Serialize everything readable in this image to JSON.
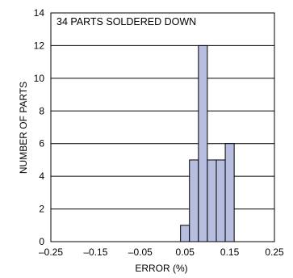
{
  "chart_data": {
    "type": "bar",
    "annotation": "34 PARTS SOLDERED DOWN",
    "xlabel": "ERROR (%)",
    "ylabel": "NUMBER OF PARTS",
    "xlim": [
      -0.25,
      0.25
    ],
    "ylim": [
      0,
      14
    ],
    "x_ticks": [
      "–0.25",
      "–0.15",
      "–0.05",
      "0.05",
      "0.15",
      "0.25"
    ],
    "x_tick_values": [
      -0.25,
      -0.15,
      -0.05,
      0.05,
      0.15,
      0.25
    ],
    "y_ticks": [
      "0",
      "2",
      "4",
      "6",
      "8",
      "10",
      "12",
      "14"
    ],
    "y_tick_values": [
      0,
      2,
      4,
      6,
      8,
      10,
      12,
      14
    ],
    "bin_width": 0.02,
    "bins": [
      {
        "x_start": 0.04,
        "value": 1
      },
      {
        "x_start": 0.06,
        "value": 5
      },
      {
        "x_start": 0.08,
        "value": 12
      },
      {
        "x_start": 0.1,
        "value": 5
      },
      {
        "x_start": 0.12,
        "value": 5
      },
      {
        "x_start": 0.14,
        "value": 6
      }
    ],
    "grid": "horizontal",
    "colors": {
      "bar_fill": "#b8bedf",
      "bar_stroke": "#000000",
      "grid": "#000000",
      "frame": "#000000"
    }
  }
}
